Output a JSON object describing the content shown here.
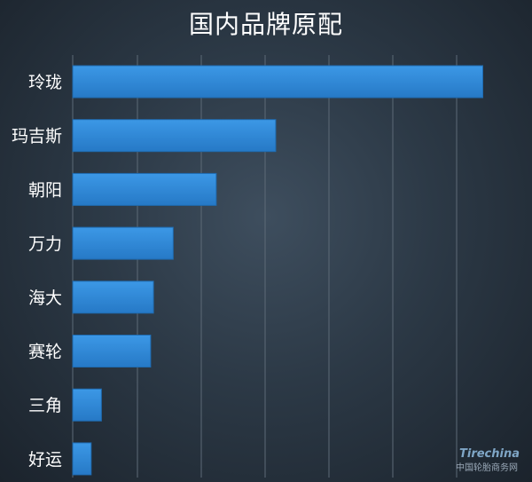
{
  "chart_data": {
    "type": "bar",
    "orientation": "horizontal",
    "title": "国内品牌原配",
    "categories": [
      "玲珑",
      "玛吉斯",
      "朝阳",
      "万力",
      "海大",
      "赛轮",
      "三角",
      "好运"
    ],
    "values": [
      100,
      49.5,
      35,
      24.5,
      19.7,
      19,
      7,
      4.5
    ],
    "xlim": [
      0,
      104
    ],
    "grid": true,
    "bar_color": "#2f8ad8",
    "background_color": "#2c3946"
  },
  "watermark": {
    "logo": "Tirechina",
    "text": "中国轮胎商务网"
  }
}
